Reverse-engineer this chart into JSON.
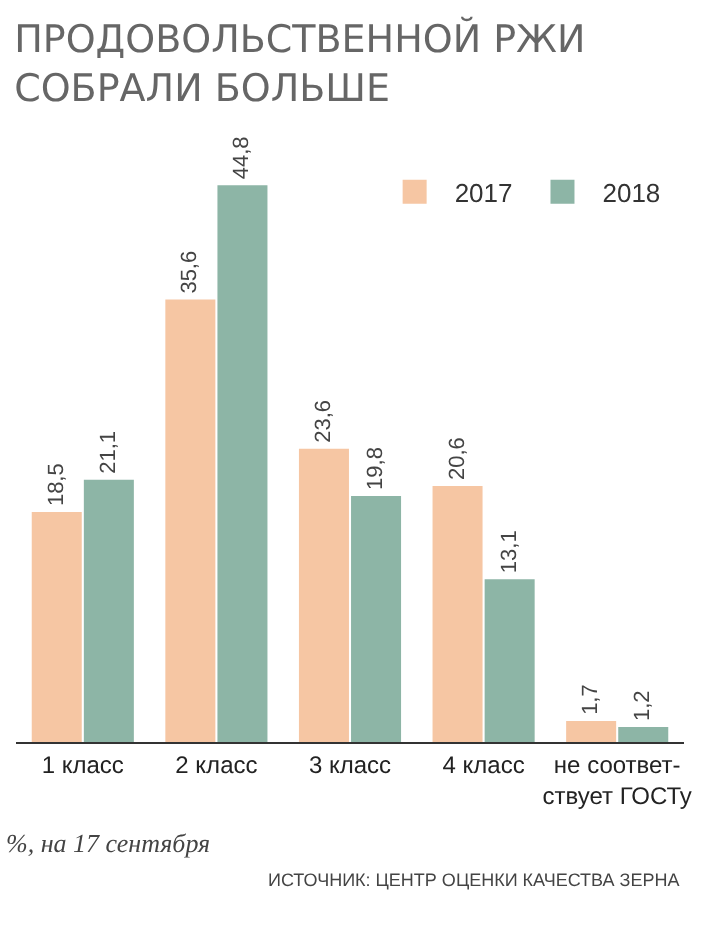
{
  "chart_data": {
    "type": "bar",
    "title": "ПРОДОВОЛЬСТВЕННОЙ РЖИ\nСОБРАЛИ БОЛЬШЕ",
    "categories": [
      "1 класс",
      "2 класс",
      "3 класс",
      "4 класс",
      "не соответ-\nствует ГОСТу"
    ],
    "series": [
      {
        "name": "2017",
        "color": "#f6c6a3",
        "values": [
          18.5,
          35.6,
          23.6,
          20.6,
          1.7
        ],
        "value_labels": [
          "18,5",
          "35,6",
          "23,6",
          "20,6",
          "1,7"
        ]
      },
      {
        "name": "2018",
        "color": "#8db5a6",
        "values": [
          21.1,
          44.8,
          19.8,
          13.1,
          1.2
        ],
        "value_labels": [
          "21,1",
          "44,8",
          "19,8",
          "13,1",
          "1,2"
        ]
      }
    ],
    "tick_labels": "x",
    "legend": "top right",
    "grid": false,
    "annotations": [
      "%, на 17 сентября",
      "ИСТОЧНИК: ЦЕНТР ОЦЕНКИ КАЧЕСТВА ЗЕРНА"
    ]
  }
}
